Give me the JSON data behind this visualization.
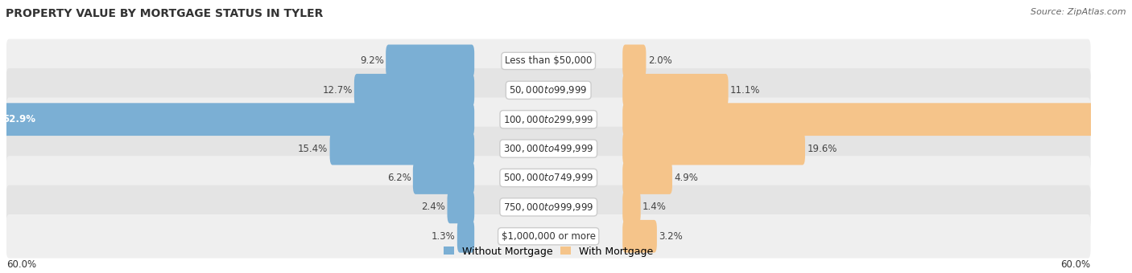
{
  "title": "PROPERTY VALUE BY MORTGAGE STATUS IN TYLER",
  "source": "Source: ZipAtlas.com",
  "categories": [
    "Less than $50,000",
    "$50,000 to $99,999",
    "$100,000 to $299,999",
    "$300,000 to $499,999",
    "$500,000 to $749,999",
    "$750,000 to $999,999",
    "$1,000,000 or more"
  ],
  "without_mortgage": [
    9.2,
    12.7,
    52.9,
    15.4,
    6.2,
    2.4,
    1.3
  ],
  "with_mortgage": [
    2.0,
    11.1,
    57.7,
    19.6,
    4.9,
    1.4,
    3.2
  ],
  "axis_max": 60.0,
  "blue_color": "#7bafd4",
  "orange_color": "#f5c48a",
  "row_bg_even": "#efefef",
  "row_bg_odd": "#e4e4e4",
  "title_fontsize": 10,
  "source_fontsize": 8,
  "label_fontsize": 8.5,
  "category_fontsize": 8.5,
  "legend_fontsize": 9,
  "axis_label_fontsize": 8.5
}
